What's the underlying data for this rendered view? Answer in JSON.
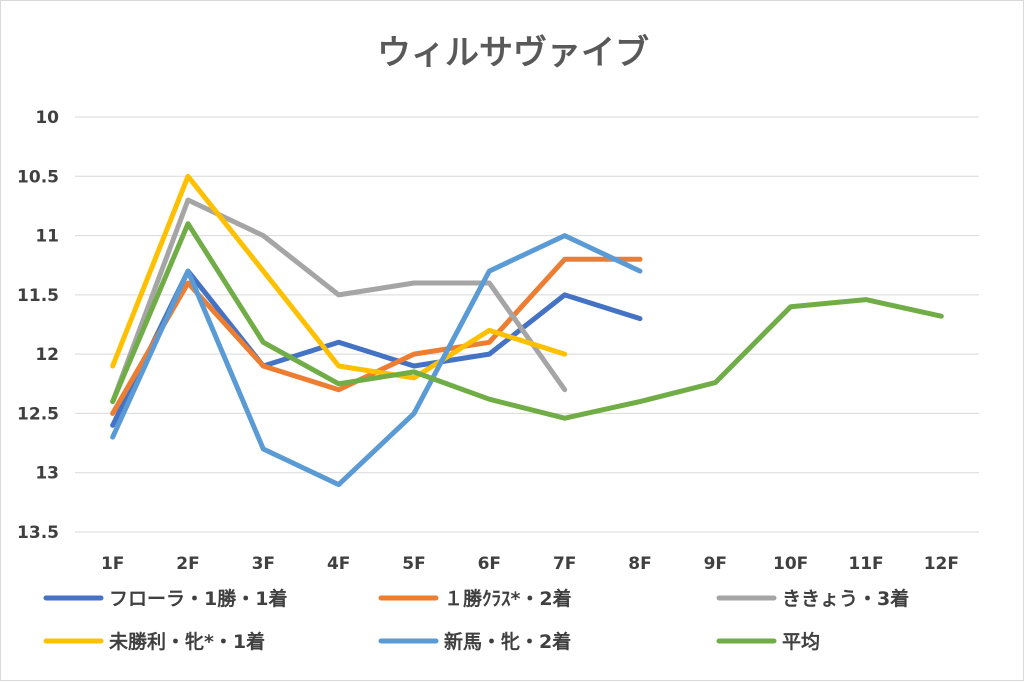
{
  "chart_data": {
    "type": "line",
    "title": "ウィルサヴァイブ",
    "xlabel": "",
    "ylabel": "",
    "categories": [
      "1F",
      "2F",
      "3F",
      "4F",
      "5F",
      "6F",
      "7F",
      "8F",
      "9F",
      "10F",
      "11F",
      "12F"
    ],
    "y_ticks": [
      "10",
      "10.5",
      "11",
      "11.5",
      "12",
      "12.5",
      "13",
      "13.5"
    ],
    "ylim": [
      13.5,
      10
    ],
    "y_axis_reversed": true,
    "grid": true,
    "legend_position": "bottom",
    "series": [
      {
        "name": "フローラ・1勝・1着",
        "color": "#4472c4",
        "values": [
          12.6,
          11.3,
          12.1,
          11.9,
          12.1,
          12.0,
          11.5,
          11.7,
          null,
          null,
          null,
          null
        ]
      },
      {
        "name": "１勝ｸﾗｽ*・2着",
        "color": "#ed7d31",
        "values": [
          12.5,
          11.4,
          12.1,
          12.3,
          12.0,
          11.9,
          11.2,
          11.2,
          null,
          null,
          null,
          null
        ]
      },
      {
        "name": "ききょう・3着",
        "color": "#a5a5a5",
        "values": [
          12.4,
          10.7,
          11.0,
          11.5,
          11.4,
          11.4,
          12.3,
          null,
          null,
          null,
          null,
          null
        ]
      },
      {
        "name": "未勝利・牝*・1着",
        "color": "#ffc000",
        "values": [
          12.1,
          10.5,
          11.3,
          12.1,
          12.2,
          11.8,
          12.0,
          null,
          null,
          null,
          null,
          null
        ]
      },
      {
        "name": "新馬・牝・2着",
        "color": "#5b9bd5",
        "values": [
          12.7,
          11.3,
          12.8,
          13.1,
          12.5,
          11.3,
          11.0,
          11.3,
          null,
          null,
          null,
          null
        ]
      },
      {
        "name": "平均",
        "color": "#70ad47",
        "values": [
          12.4,
          10.9,
          11.9,
          12.25,
          12.15,
          12.38,
          12.54,
          12.4,
          12.24,
          11.6,
          11.54,
          11.68
        ]
      }
    ]
  }
}
